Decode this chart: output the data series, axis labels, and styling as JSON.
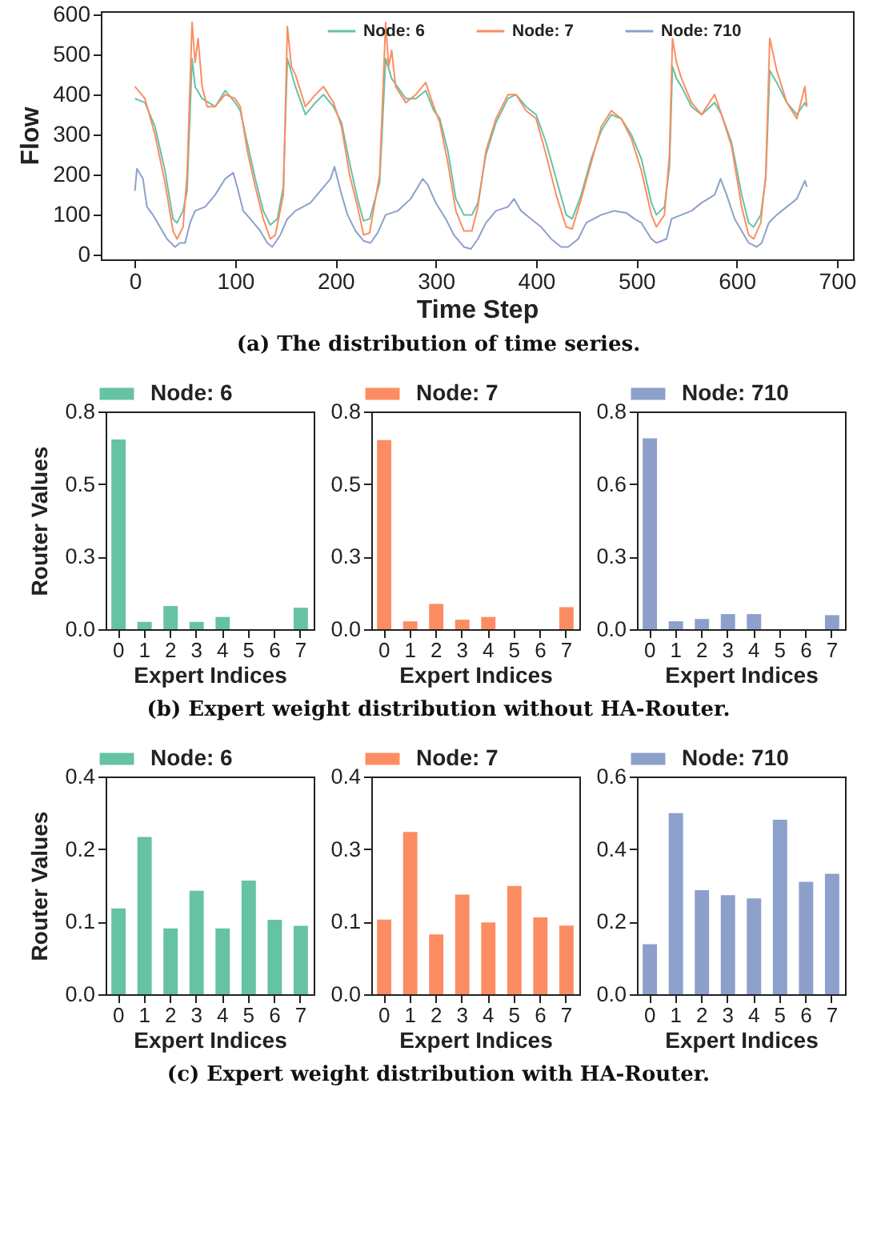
{
  "chart_data": [
    {
      "type": "line",
      "xlabel": "Time Step",
      "ylabel": "Flow",
      "xlim": [
        -34,
        716
      ],
      "ylim": [
        -11,
        608
      ],
      "xticks": [
        0,
        100,
        200,
        300,
        400,
        500,
        600,
        700
      ],
      "yticks": [
        0,
        100,
        200,
        300,
        400,
        500,
        600
      ],
      "legend": "top",
      "annotations": [
        "(a) The distribution of time series."
      ],
      "series": [
        {
          "name": "Node: 6",
          "color": "#66c2a5",
          "x": [
            0,
            10,
            20,
            30,
            38,
            42,
            48,
            52,
            57,
            60,
            67,
            80,
            90,
            100,
            105,
            112,
            120,
            128,
            135,
            142,
            148,
            152,
            160,
            170,
            180,
            188,
            198,
            206,
            214,
            222,
            228,
            234,
            244,
            250,
            256,
            270,
            280,
            290,
            298,
            304,
            312,
            320,
            328,
            336,
            342,
            350,
            360,
            372,
            380,
            390,
            400,
            410,
            420,
            430,
            436,
            445,
            455,
            465,
            475,
            485,
            495,
            505,
            515,
            520,
            528,
            533,
            536,
            540,
            545,
            555,
            565,
            578,
            585,
            595,
            605,
            612,
            617,
            624,
            629,
            633,
            640,
            650,
            660,
            668,
            670
          ],
          "values": [
            390,
            380,
            320,
            210,
            90,
            80,
            110,
            160,
            490,
            420,
            390,
            370,
            410,
            380,
            360,
            280,
            190,
            110,
            75,
            90,
            170,
            490,
            420,
            350,
            380,
            400,
            370,
            330,
            230,
            140,
            85,
            90,
            180,
            490,
            440,
            390,
            390,
            410,
            360,
            340,
            260,
            140,
            100,
            100,
            130,
            250,
            330,
            390,
            400,
            370,
            350,
            280,
            190,
            100,
            90,
            150,
            240,
            310,
            350,
            340,
            300,
            240,
            130,
            100,
            120,
            220,
            470,
            440,
            420,
            370,
            350,
            380,
            350,
            280,
            150,
            80,
            70,
            100,
            190,
            460,
            430,
            380,
            350,
            380,
            370
          ]
        },
        {
          "name": "Node: 7",
          "color": "#fc8d62",
          "x": [
            0,
            10,
            20,
            30,
            38,
            42,
            48,
            52,
            57,
            60,
            63,
            67,
            72,
            80,
            90,
            100,
            105,
            112,
            120,
            128,
            135,
            140,
            148,
            152,
            156,
            160,
            170,
            180,
            188,
            198,
            206,
            214,
            222,
            228,
            234,
            244,
            250,
            253,
            256,
            260,
            270,
            280,
            290,
            298,
            304,
            312,
            320,
            328,
            336,
            342,
            350,
            360,
            372,
            380,
            390,
            400,
            410,
            420,
            430,
            436,
            445,
            455,
            465,
            475,
            485,
            495,
            505,
            515,
            520,
            528,
            533,
            536,
            540,
            545,
            555,
            565,
            578,
            585,
            595,
            605,
            612,
            617,
            624,
            629,
            633,
            640,
            650,
            660,
            668,
            670
          ],
          "values": [
            420,
            390,
            300,
            180,
            60,
            40,
            70,
            200,
            580,
            480,
            540,
            420,
            370,
            370,
            400,
            390,
            370,
            260,
            170,
            90,
            40,
            50,
            150,
            570,
            470,
            450,
            370,
            400,
            420,
            380,
            320,
            200,
            120,
            50,
            55,
            200,
            580,
            470,
            510,
            420,
            380,
            400,
            430,
            370,
            330,
            230,
            110,
            60,
            60,
            120,
            260,
            340,
            400,
            400,
            360,
            340,
            250,
            150,
            70,
            65,
            140,
            230,
            320,
            360,
            340,
            290,
            210,
            100,
            70,
            100,
            250,
            540,
            480,
            440,
            380,
            350,
            400,
            350,
            270,
            120,
            50,
            40,
            80,
            200,
            540,
            460,
            380,
            340,
            420,
            370
          ]
        },
        {
          "name": "Node: 710",
          "color": "#8da0cb",
          "x": [
            0,
            2,
            8,
            12,
            18,
            25,
            32,
            40,
            45,
            50,
            55,
            60,
            70,
            80,
            90,
            98,
            102,
            108,
            115,
            125,
            132,
            137,
            145,
            152,
            160,
            175,
            185,
            195,
            199,
            205,
            212,
            220,
            228,
            235,
            242,
            250,
            262,
            275,
            287,
            292,
            300,
            310,
            318,
            328,
            335,
            342,
            350,
            360,
            372,
            378,
            385,
            395,
            405,
            415,
            425,
            432,
            442,
            450,
            465,
            478,
            490,
            498,
            505,
            515,
            520,
            530,
            535,
            545,
            555,
            565,
            578,
            584,
            590,
            598,
            605,
            612,
            620,
            625,
            632,
            640,
            650,
            660,
            668,
            670
          ],
          "values": [
            160,
            215,
            190,
            120,
            100,
            70,
            40,
            20,
            30,
            30,
            80,
            110,
            120,
            150,
            190,
            205,
            170,
            110,
            90,
            60,
            30,
            20,
            50,
            90,
            110,
            130,
            160,
            190,
            220,
            160,
            100,
            60,
            35,
            30,
            55,
            100,
            110,
            140,
            190,
            175,
            130,
            90,
            50,
            20,
            15,
            40,
            80,
            110,
            120,
            140,
            110,
            90,
            70,
            40,
            20,
            20,
            40,
            80,
            100,
            110,
            105,
            90,
            80,
            40,
            30,
            40,
            90,
            100,
            110,
            130,
            150,
            190,
            150,
            90,
            60,
            30,
            20,
            30,
            80,
            100,
            120,
            140,
            185,
            170
          ]
        }
      ]
    },
    {
      "type": "bar",
      "categories": [
        "0",
        "1",
        "2",
        "3",
        "4",
        "5",
        "6",
        "7"
      ],
      "xlabel": "Expert Indices",
      "ylabel": "Router Values",
      "ylim": [
        0,
        0.8
      ],
      "yticks": [
        {
          "value": 0,
          "label": "0.0"
        },
        {
          "value": 0.2667,
          "label": "0.3"
        },
        {
          "value": 0.5333,
          "label": "0.5"
        },
        {
          "value": 0.8,
          "label": "0.8"
        }
      ],
      "legend": "top",
      "series": [
        {
          "name": "Node: 6",
          "color": "#66c2a5",
          "values": [
            0.697,
            0.027,
            0.085,
            0.027,
            0.045,
            0,
            0,
            0.079
          ]
        }
      ]
    },
    {
      "type": "bar",
      "categories": [
        "0",
        "1",
        "2",
        "3",
        "4",
        "5",
        "6",
        "7"
      ],
      "xlabel": "Expert Indices",
      "ylim": [
        0,
        0.8
      ],
      "yticks": [
        {
          "value": 0,
          "label": "0.0"
        },
        {
          "value": 0.2667,
          "label": "0.3"
        },
        {
          "value": 0.5333,
          "label": "0.5"
        },
        {
          "value": 0.8,
          "label": "0.8"
        }
      ],
      "legend": "top",
      "annotations": [
        "(b) Expert weight distribution without HA-Router."
      ],
      "series": [
        {
          "name": "Node: 7",
          "color": "#fc8d62",
          "values": [
            0.695,
            0.029,
            0.093,
            0.035,
            0.045,
            0,
            0,
            0.081
          ]
        }
      ]
    },
    {
      "type": "bar",
      "categories": [
        "0",
        "1",
        "2",
        "3",
        "4",
        "5",
        "6",
        "7"
      ],
      "xlabel": "Expert Indices",
      "ylim": [
        0,
        0.85
      ],
      "yticks": [
        {
          "value": 0,
          "label": "0.0"
        },
        {
          "value": 0.2833,
          "label": "0.3"
        },
        {
          "value": 0.5667,
          "label": "0.6"
        },
        {
          "value": 0.85,
          "label": "0.8"
        }
      ],
      "legend": "top",
      "series": [
        {
          "name": "Node: 710",
          "color": "#8da0cb",
          "values": [
            0.745,
            0.031,
            0.04,
            0.059,
            0.059,
            0,
            0,
            0.055
          ]
        }
      ]
    },
    {
      "type": "bar",
      "categories": [
        "0",
        "1",
        "2",
        "3",
        "4",
        "5",
        "6",
        "7"
      ],
      "xlabel": "Expert Indices",
      "ylabel": "Router Values",
      "ylim": [
        0,
        0.36
      ],
      "yticks": [
        {
          "value": 0,
          "label": "0.0"
        },
        {
          "value": 0.12,
          "label": "0.1"
        },
        {
          "value": 0.24,
          "label": "0.2"
        },
        {
          "value": 0.36,
          "label": "0.4"
        }
      ],
      "legend": "top",
      "series": [
        {
          "name": "Node: 6",
          "color": "#66c2a5",
          "values": [
            0.142,
            0.26,
            0.109,
            0.171,
            0.109,
            0.188,
            0.123,
            0.113
          ]
        }
      ]
    },
    {
      "type": "bar",
      "categories": [
        "0",
        "1",
        "2",
        "3",
        "4",
        "5",
        "6",
        "7"
      ],
      "xlabel": "Expert Indices",
      "ylim": [
        0,
        0.4
      ],
      "yticks": [
        {
          "value": 0,
          "label": "0.0"
        },
        {
          "value": 0.1333,
          "label": "0.1"
        },
        {
          "value": 0.2667,
          "label": "0.3"
        },
        {
          "value": 0.4,
          "label": "0.4"
        }
      ],
      "legend": "top",
      "annotations": [
        "(c) Expert weight distribution with HA-Router."
      ],
      "series": [
        {
          "name": "Node: 7",
          "color": "#fc8d62",
          "values": [
            0.137,
            0.298,
            0.11,
            0.183,
            0.132,
            0.199,
            0.141,
            0.126
          ]
        }
      ]
    },
    {
      "type": "bar",
      "categories": [
        "0",
        "1",
        "2",
        "3",
        "4",
        "5",
        "6",
        "7"
      ],
      "xlabel": "Expert Indices",
      "ylim": [
        0,
        0.6
      ],
      "yticks": [
        {
          "value": 0,
          "label": "0.0"
        },
        {
          "value": 0.2,
          "label": "0.2"
        },
        {
          "value": 0.4,
          "label": "0.4"
        },
        {
          "value": 0.6,
          "label": "0.6"
        }
      ],
      "legend": "top",
      "series": [
        {
          "name": "Node: 710",
          "color": "#8da0cb",
          "values": [
            0.138,
            0.499,
            0.287,
            0.273,
            0.264,
            0.481,
            0.31,
            0.332
          ]
        }
      ]
    }
  ]
}
